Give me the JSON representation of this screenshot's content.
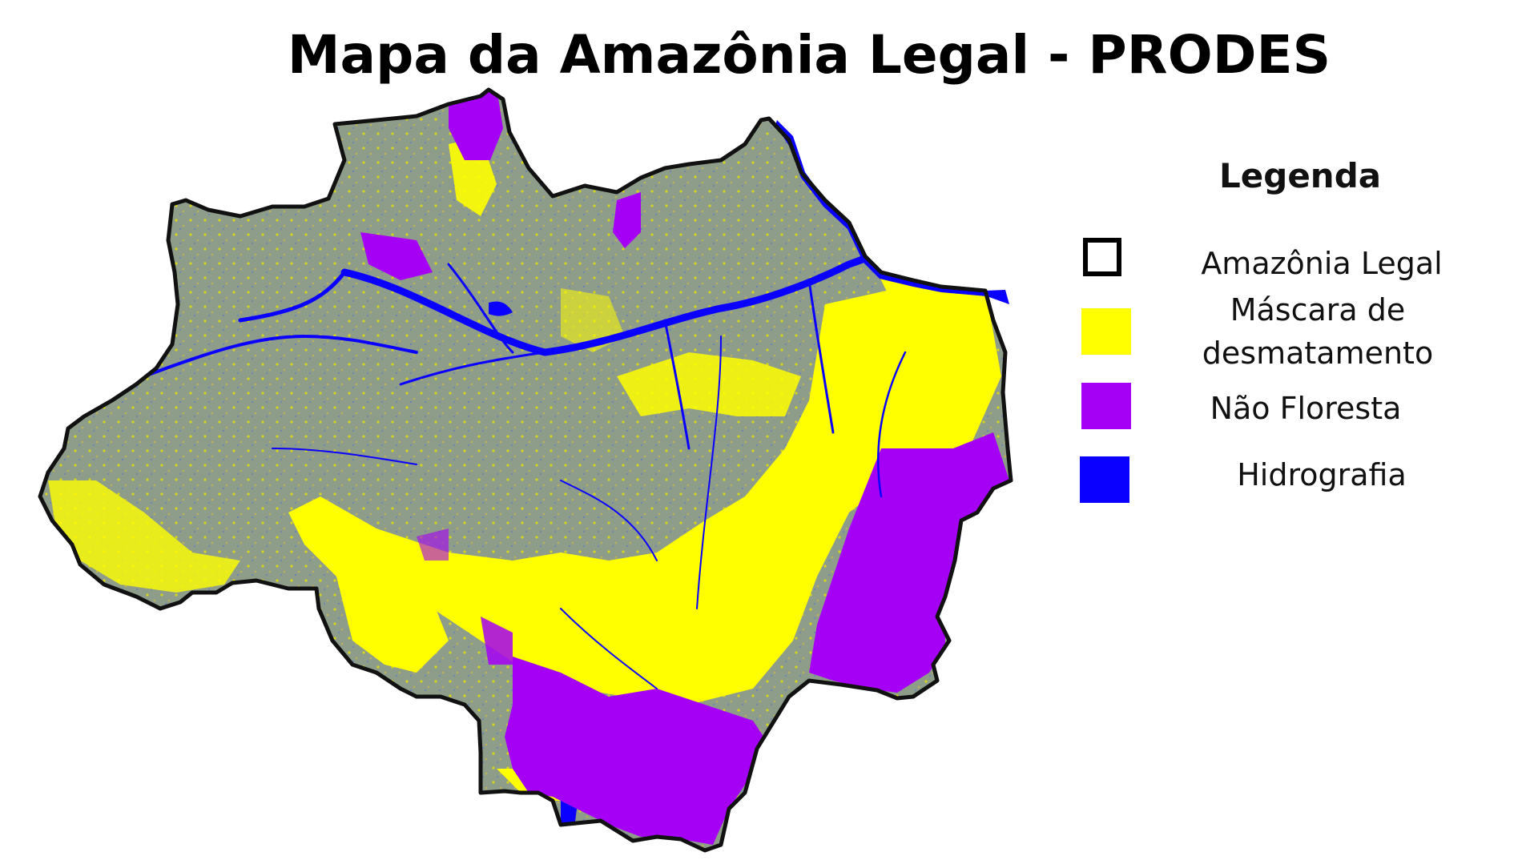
{
  "title": "Mapa da Amazônia Legal - PRODES",
  "legend": {
    "title": "Legenda",
    "items": [
      {
        "label": "Amazônia Legal",
        "style": "outline",
        "color": "#000000"
      },
      {
        "label": "Máscara de desmatamento",
        "style": "fill",
        "color": "#FFFF00"
      },
      {
        "label": "Não Floresta",
        "style": "fill",
        "color": "#A500F5"
      },
      {
        "label": "Hidrografia",
        "style": "fill",
        "color": "#0A00FF"
      }
    ]
  },
  "colors": {
    "forest": "#8E9C8A",
    "deforestation": "#FFFF00",
    "non_forest": "#A500F5",
    "hydrography": "#0A00FF",
    "border": "#111111"
  }
}
